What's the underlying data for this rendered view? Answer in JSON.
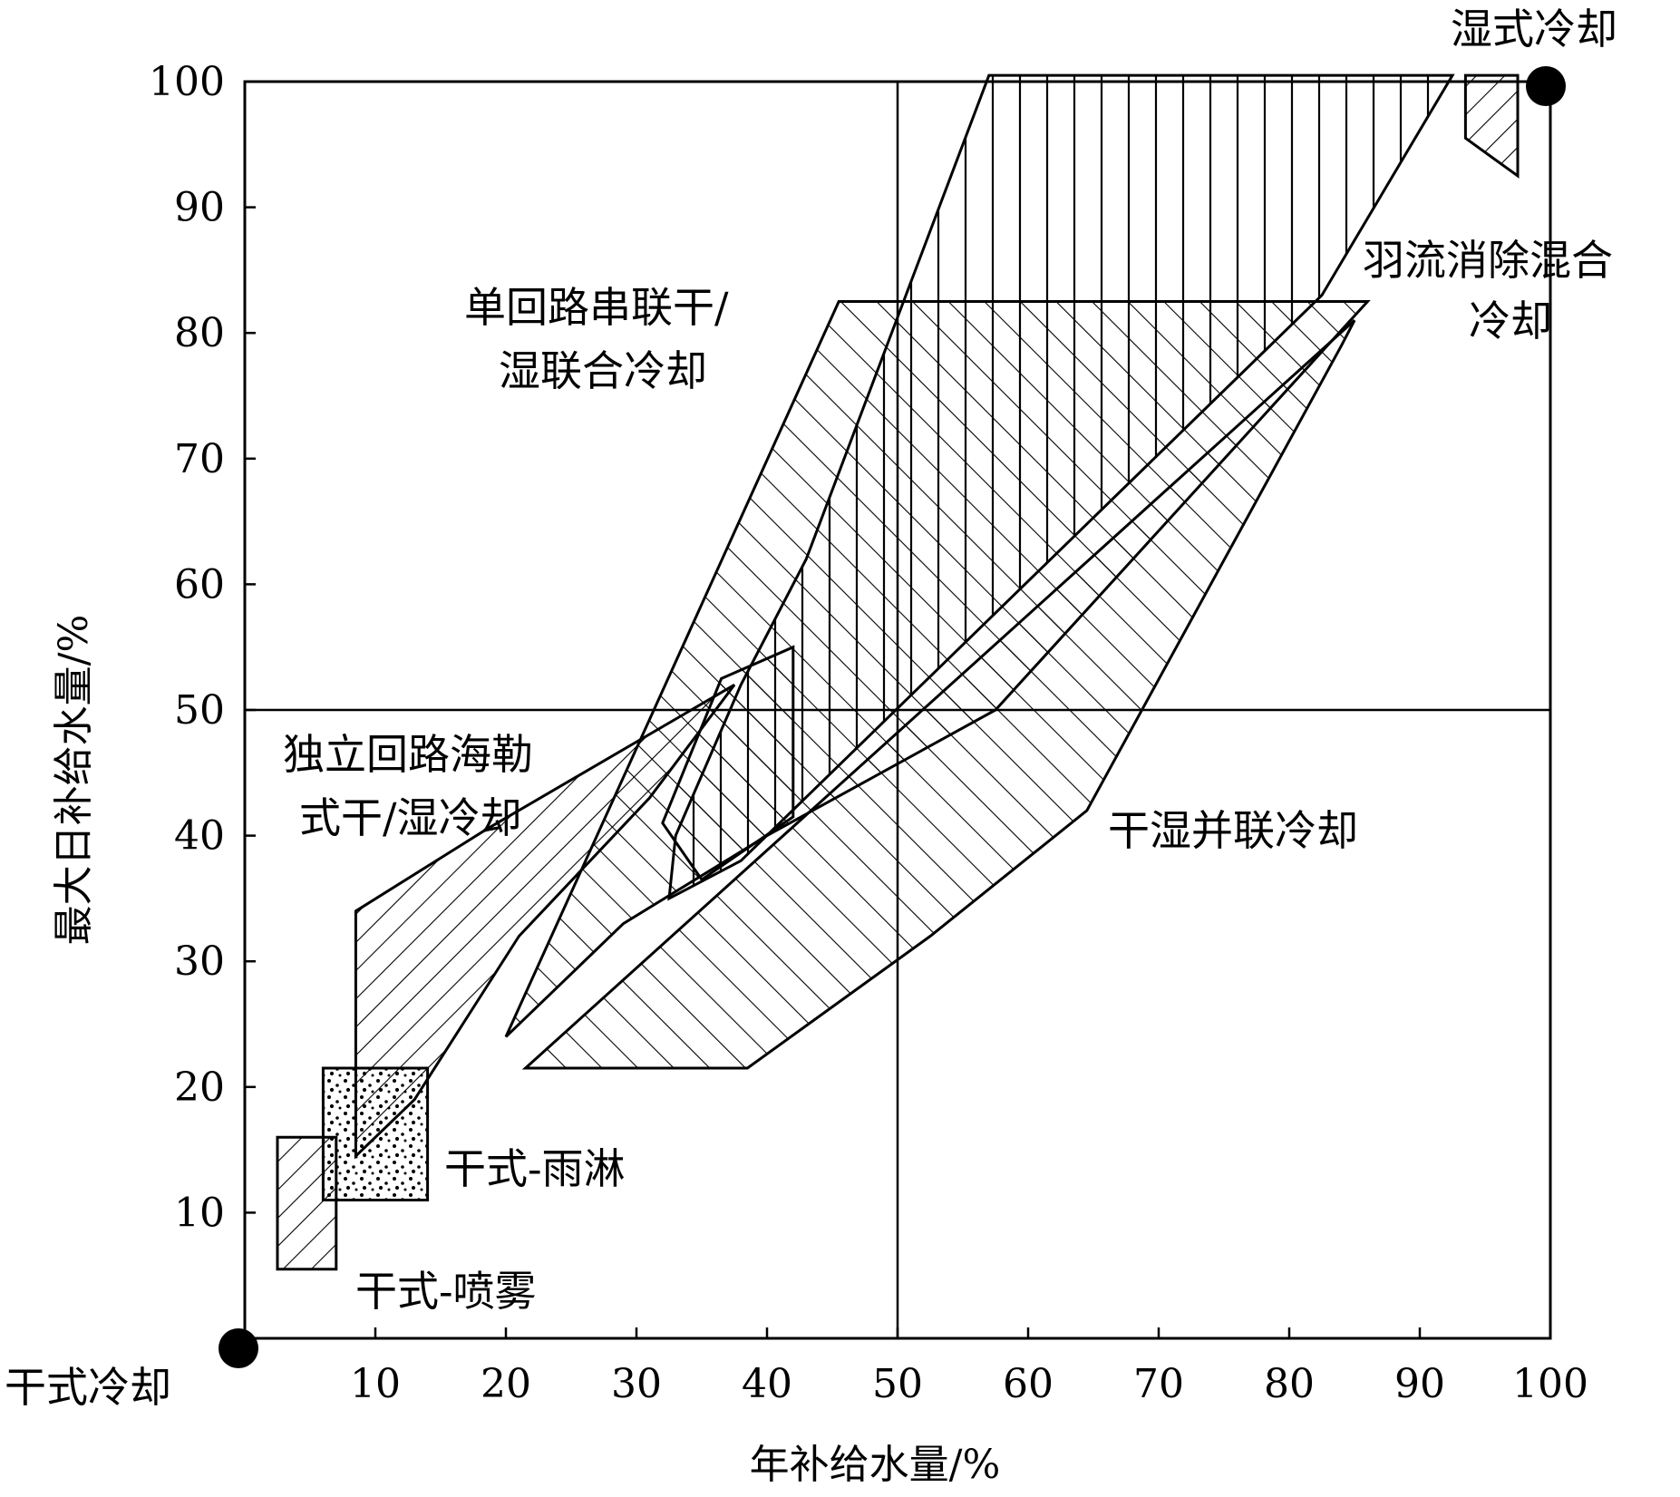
{
  "chart_data": {
    "type": "area",
    "title": "",
    "xlabel": "年补给水量/%",
    "ylabel": "最大日补给水量/%",
    "xlim": [
      0,
      100
    ],
    "ylim": [
      0,
      100
    ],
    "x_ticks": [
      10,
      20,
      30,
      40,
      50,
      60,
      70,
      80,
      90,
      100
    ],
    "y_ticks": [
      10,
      20,
      30,
      40,
      50,
      60,
      70,
      80,
      90,
      100
    ],
    "grid": false,
    "reference_lines": {
      "x": 50,
      "y": 50
    },
    "endpoints": [
      {
        "label": "干式冷却",
        "x": 0,
        "y": 0
      },
      {
        "label": "湿式冷却",
        "x": 100,
        "y": 100
      }
    ],
    "regions": [
      {
        "name": "干式-喷雾",
        "pattern": "diag-left",
        "polygon": [
          [
            2.5,
            16
          ],
          [
            7,
            16
          ],
          [
            7,
            5.5
          ],
          [
            2.5,
            5.5
          ]
        ],
        "label_pos": [
          8.5,
          5.5
        ]
      },
      {
        "name": "干式-雨淋",
        "pattern": "dots",
        "polygon": [
          [
            6,
            21.5
          ],
          [
            14,
            21.5
          ],
          [
            14,
            11
          ],
          [
            6,
            11
          ]
        ],
        "label_pos": [
          15.5,
          14
        ]
      },
      {
        "name": "独立回路海勒式干/湿冷却",
        "pattern": "diag-left",
        "polygon": [
          [
            8.5,
            34
          ],
          [
            18.5,
            40.5
          ],
          [
            37.5,
            52
          ],
          [
            31,
            43
          ],
          [
            21,
            32
          ],
          [
            13,
            19
          ],
          [
            8.5,
            14.5
          ]
        ],
        "label_pos": [
          15,
          47
        ]
      },
      {
        "name": "单回路串联干/湿联合冷却",
        "pattern": "diag-right",
        "polygon": [
          [
            20,
            24
          ],
          [
            45.5,
            82.5
          ],
          [
            86,
            82.5
          ],
          [
            57.5,
            50
          ],
          [
            40,
            40
          ],
          [
            29,
            33
          ]
        ],
        "label_pos": [
          29,
          80
        ]
      },
      {
        "name": "",
        "pattern": "diag-right",
        "polygon": [
          [
            32,
            41
          ],
          [
            36.5,
            52.5
          ],
          [
            42,
            55
          ],
          [
            42,
            41.5
          ],
          [
            35,
            36.5
          ]
        ]
      },
      {
        "name": "干湿并联冷却",
        "pattern": "diag-right",
        "polygon": [
          [
            21.5,
            21.5
          ],
          [
            38.5,
            21.5
          ],
          [
            52.5,
            32
          ],
          [
            64.5,
            42
          ],
          [
            84,
            79
          ],
          [
            85,
            81
          ]
        ],
        "label_pos": [
          66.5,
          40.5
        ]
      },
      {
        "name": "",
        "pattern": "vertical",
        "polygon": [
          [
            57,
            100.5
          ],
          [
            92.5,
            100.5
          ],
          [
            82.5,
            83
          ],
          [
            38,
            38
          ],
          [
            32.5,
            35
          ],
          [
            33,
            40
          ],
          [
            38,
            52
          ],
          [
            43,
            62
          ]
        ]
      },
      {
        "name": "羽流消除混合冷却",
        "pattern": "diag-left",
        "polygon": [
          [
            93.5,
            100.5
          ],
          [
            97.5,
            100.5
          ],
          [
            97.5,
            92.5
          ],
          [
            93.5,
            95.5
          ]
        ],
        "label_pos": [
          93,
          86
        ]
      }
    ]
  },
  "labels": {
    "dry_endpoint": "干式冷却",
    "wet_endpoint": "湿式冷却",
    "heller_line1": "独立回路海勒",
    "heller_line2": "式干/湿冷却",
    "series_line1": "单回路串联干/",
    "series_line2": "湿联合冷却",
    "parallel": "干湿并联冷却",
    "plume_line1": "羽流消除混合",
    "plume_line2": "冷却",
    "rain": "干式-雨淋",
    "spray": "干式-喷雾"
  }
}
